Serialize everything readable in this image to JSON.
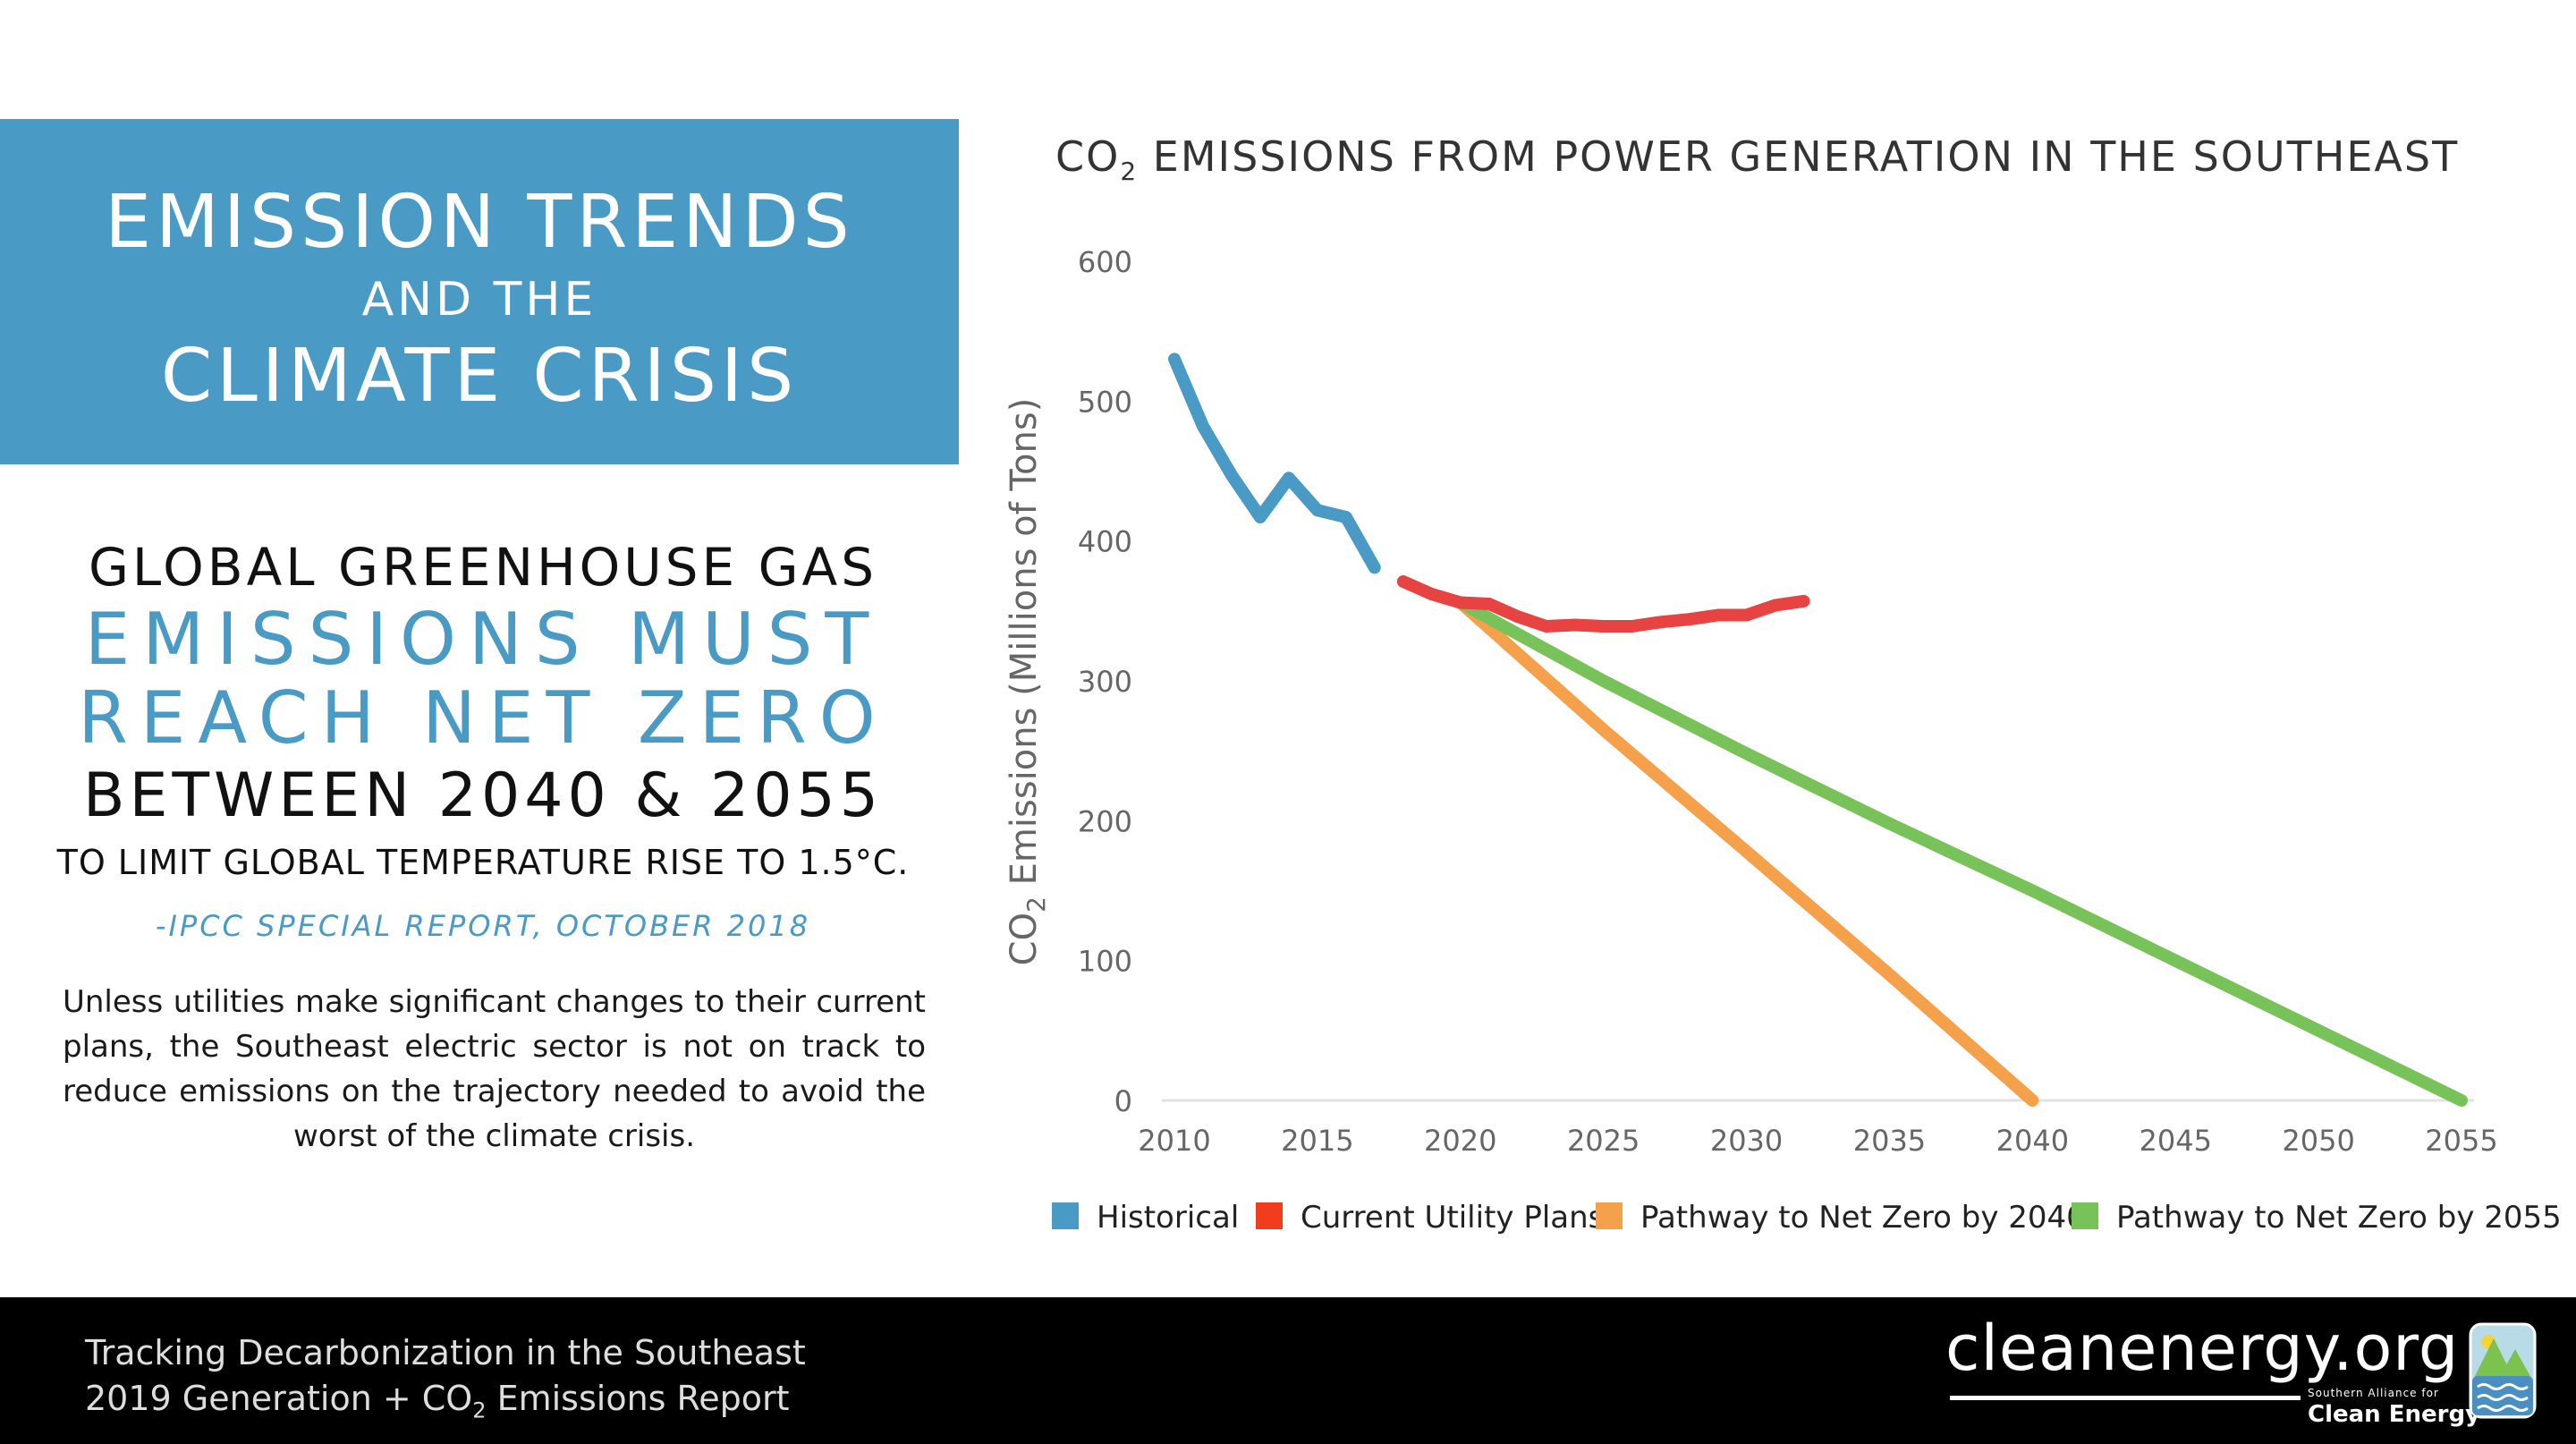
{
  "header": {
    "line1": "EMISSION TRENDS",
    "line2": "AND THE",
    "line3": "CLIMATE CRISIS"
  },
  "quote": {
    "line1": "GLOBAL GREENHOUSE GAS",
    "line2": "EMISSIONS MUST",
    "line3": "REACH NET ZERO",
    "line4": "BETWEEN 2040 & 2055",
    "line5": "TO LIMIT GLOBAL TEMPERATURE RISE TO 1.5°C.",
    "source": "-IPCC SPECIAL REPORT, OCTOBER 2018"
  },
  "body_text": "Unless utilities make significant changes to their current plans, the Southeast electric sector is not on track to reduce emissions on the trajectory needed to avoid the worst of the climate crisis.",
  "footer": {
    "line1": "Tracking Decarbonization in the Southeast",
    "line2_prefix": "2019 Generation + CO",
    "line2_sub": "2",
    "line2_suffix": " Emissions Report",
    "logo_text": "cleanenergy.org",
    "logo_small": "Southern Alliance for",
    "logo_big": "Clean Energy"
  },
  "chart_data": {
    "type": "line",
    "title_prefix": "CO",
    "title_sub": "2",
    "title_suffix": " EMISSIONS FROM POWER GENERATION IN THE SOUTHEAST",
    "ylabel_prefix": "CO",
    "ylabel_sub": "2",
    "ylabel_suffix": " Emissions (Millions of Tons)",
    "xlabel": "",
    "xlim": [
      2010,
      2055
    ],
    "ylim": [
      0,
      600
    ],
    "x_ticks": [
      2010,
      2015,
      2020,
      2025,
      2030,
      2035,
      2040,
      2045,
      2050,
      2055
    ],
    "y_ticks": [
      0,
      100,
      200,
      300,
      400,
      500,
      600
    ],
    "grid": false,
    "legend_position": "bottom",
    "series": [
      {
        "name": "Historical",
        "color": "#4a9ac6",
        "x": [
          2010,
          2011,
          2012,
          2013,
          2014,
          2015,
          2016,
          2017
        ],
        "y": [
          530,
          482,
          447,
          417,
          445,
          422,
          417,
          381
        ]
      },
      {
        "name": "Current Utility Plans",
        "color": "#e84343",
        "x": [
          2018,
          2019,
          2020,
          2021,
          2022,
          2023,
          2024,
          2025,
          2026,
          2027,
          2028,
          2029,
          2030,
          2031,
          2032
        ],
        "y": [
          371,
          362,
          356,
          355,
          346,
          339,
          340,
          339,
          339,
          342,
          344,
          347,
          347,
          354,
          357
        ]
      },
      {
        "name": "Pathway to Net Zero by 2040",
        "color": "#f5a04a",
        "x": [
          2020,
          2025,
          2030,
          2035,
          2040
        ],
        "y": [
          356,
          265,
          178,
          90,
          0
        ]
      },
      {
        "name": "Pathway to Net Zero by 2055",
        "color": "#78c25a",
        "x": [
          2020,
          2025,
          2030,
          2035,
          2040,
          2045,
          2050,
          2055
        ],
        "y": [
          356,
          300,
          248,
          198,
          150,
          100,
          50,
          0
        ]
      }
    ],
    "legend_swatch_colors": [
      "#4a9ac6",
      "#f23c1e",
      "#f5a04a",
      "#78c25a"
    ]
  }
}
